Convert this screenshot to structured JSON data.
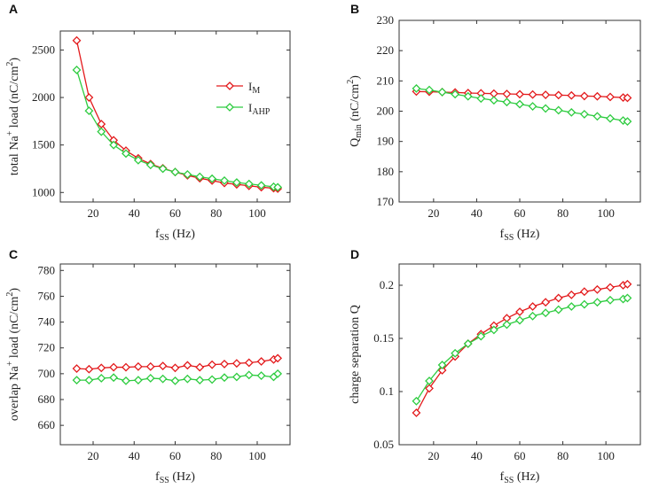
{
  "colors": {
    "IM": "#e31a1c",
    "IAHP": "#2ecc40",
    "axis": "#333333"
  },
  "legend": {
    "items": [
      {
        "series": "IM",
        "main": "I",
        "sub": "M"
      },
      {
        "series": "IAHP",
        "main": "I",
        "sub": "AHP"
      }
    ]
  },
  "chart_data": [
    {
      "id": "A",
      "type": "line",
      "panel_label": "A",
      "xlabel": {
        "main": "f",
        "sub": "SS",
        "rest": " (Hz)"
      },
      "ylabel": {
        "prefix": "total Na",
        "sup": "+",
        "rest": " load (nC/cm",
        "sup2": "2",
        "end": ")"
      },
      "xlim": [
        4,
        116
      ],
      "ylim": [
        900,
        2700
      ],
      "xticks": [
        20,
        40,
        60,
        80,
        100
      ],
      "yticks": [
        1000,
        1500,
        2000,
        2500
      ],
      "x": [
        12,
        18,
        24,
        30,
        36,
        42,
        48,
        54,
        60,
        66,
        72,
        78,
        84,
        90,
        96,
        102,
        108,
        110
      ],
      "series": [
        {
          "name": "IM",
          "values": [
            2600,
            2000,
            1720,
            1550,
            1440,
            1360,
            1300,
            1255,
            1215,
            1180,
            1150,
            1125,
            1100,
            1085,
            1070,
            1055,
            1045,
            1040
          ]
        },
        {
          "name": "IAHP",
          "values": [
            2290,
            1860,
            1640,
            1500,
            1410,
            1340,
            1290,
            1250,
            1215,
            1190,
            1165,
            1145,
            1125,
            1105,
            1090,
            1075,
            1060,
            1055
          ]
        }
      ]
    },
    {
      "id": "B",
      "type": "line",
      "panel_label": "B",
      "xlabel": {
        "main": "f",
        "sub": "SS",
        "rest": " (Hz)"
      },
      "ylabel": {
        "prefix": "Q",
        "sub": "min",
        "rest": " (nC/cm",
        "sup2": "2",
        "end": ")"
      },
      "xlim": [
        4,
        116
      ],
      "ylim": [
        170,
        230
      ],
      "xticks": [
        20,
        40,
        60,
        80,
        100
      ],
      "yticks": [
        170,
        180,
        190,
        200,
        210,
        220,
        230
      ],
      "x": [
        12,
        18,
        24,
        30,
        36,
        42,
        48,
        54,
        60,
        66,
        72,
        78,
        84,
        90,
        96,
        102,
        108,
        110
      ],
      "series": [
        {
          "name": "IM",
          "values": [
            206.5,
            206.4,
            206.3,
            206.2,
            206.0,
            205.9,
            205.8,
            205.7,
            205.6,
            205.5,
            205.4,
            205.3,
            205.2,
            205.0,
            204.9,
            204.7,
            204.5,
            204.4
          ]
        },
        {
          "name": "IAHP",
          "values": [
            207.5,
            207.0,
            206.3,
            205.6,
            204.9,
            204.2,
            203.6,
            203.0,
            202.3,
            201.6,
            200.9,
            200.3,
            199.6,
            199.0,
            198.3,
            197.6,
            196.9,
            196.6
          ]
        }
      ]
    },
    {
      "id": "C",
      "type": "line",
      "panel_label": "C",
      "xlabel": {
        "main": "f",
        "sub": "SS",
        "rest": " (Hz)"
      },
      "ylabel": {
        "prefix": "overlap Na",
        "sup": "+",
        "rest": " load (nC/cm",
        "sup2": "2",
        "end": ")"
      },
      "xlim": [
        4,
        116
      ],
      "ylim": [
        645,
        785
      ],
      "xticks": [
        20,
        40,
        60,
        80,
        100
      ],
      "yticks": [
        660,
        680,
        700,
        720,
        740,
        760,
        780
      ],
      "x": [
        12,
        18,
        24,
        30,
        36,
        42,
        48,
        54,
        60,
        66,
        72,
        78,
        84,
        90,
        96,
        102,
        108,
        110
      ],
      "series": [
        {
          "name": "IM",
          "values": [
            704,
            703.5,
            704.5,
            705,
            705,
            705.5,
            705.5,
            706,
            704.5,
            706.5,
            705,
            707,
            707.5,
            708,
            708.5,
            709.5,
            711,
            712
          ]
        },
        {
          "name": "IAHP",
          "values": [
            695,
            695,
            696.5,
            697,
            694.5,
            695,
            696.5,
            696,
            694.5,
            696,
            695,
            695.5,
            697,
            697.5,
            699,
            698.5,
            697.5,
            700
          ]
        }
      ]
    },
    {
      "id": "D",
      "type": "line",
      "panel_label": "D",
      "xlabel": {
        "main": "f",
        "sub": "SS",
        "rest": " (Hz)"
      },
      "ylabel": {
        "prefix": "charge separation Q"
      },
      "xlim": [
        4,
        116
      ],
      "ylim": [
        0.05,
        0.22
      ],
      "xticks": [
        20,
        40,
        60,
        80,
        100
      ],
      "yticks": [
        0.05,
        0.1,
        0.15,
        0.2
      ],
      "ytick_labels": [
        "0.05",
        "0.1",
        "0.15",
        "0.2"
      ],
      "x": [
        12,
        18,
        24,
        30,
        36,
        42,
        48,
        54,
        60,
        66,
        72,
        78,
        84,
        90,
        96,
        102,
        108,
        110
      ],
      "series": [
        {
          "name": "IM",
          "values": [
            0.08,
            0.103,
            0.12,
            0.133,
            0.145,
            0.154,
            0.162,
            0.169,
            0.175,
            0.18,
            0.184,
            0.188,
            0.191,
            0.194,
            0.196,
            0.198,
            0.2,
            0.201
          ]
        },
        {
          "name": "IAHP",
          "values": [
            0.091,
            0.11,
            0.125,
            0.136,
            0.145,
            0.152,
            0.158,
            0.163,
            0.167,
            0.171,
            0.174,
            0.177,
            0.18,
            0.182,
            0.184,
            0.186,
            0.187,
            0.188
          ]
        }
      ]
    }
  ]
}
